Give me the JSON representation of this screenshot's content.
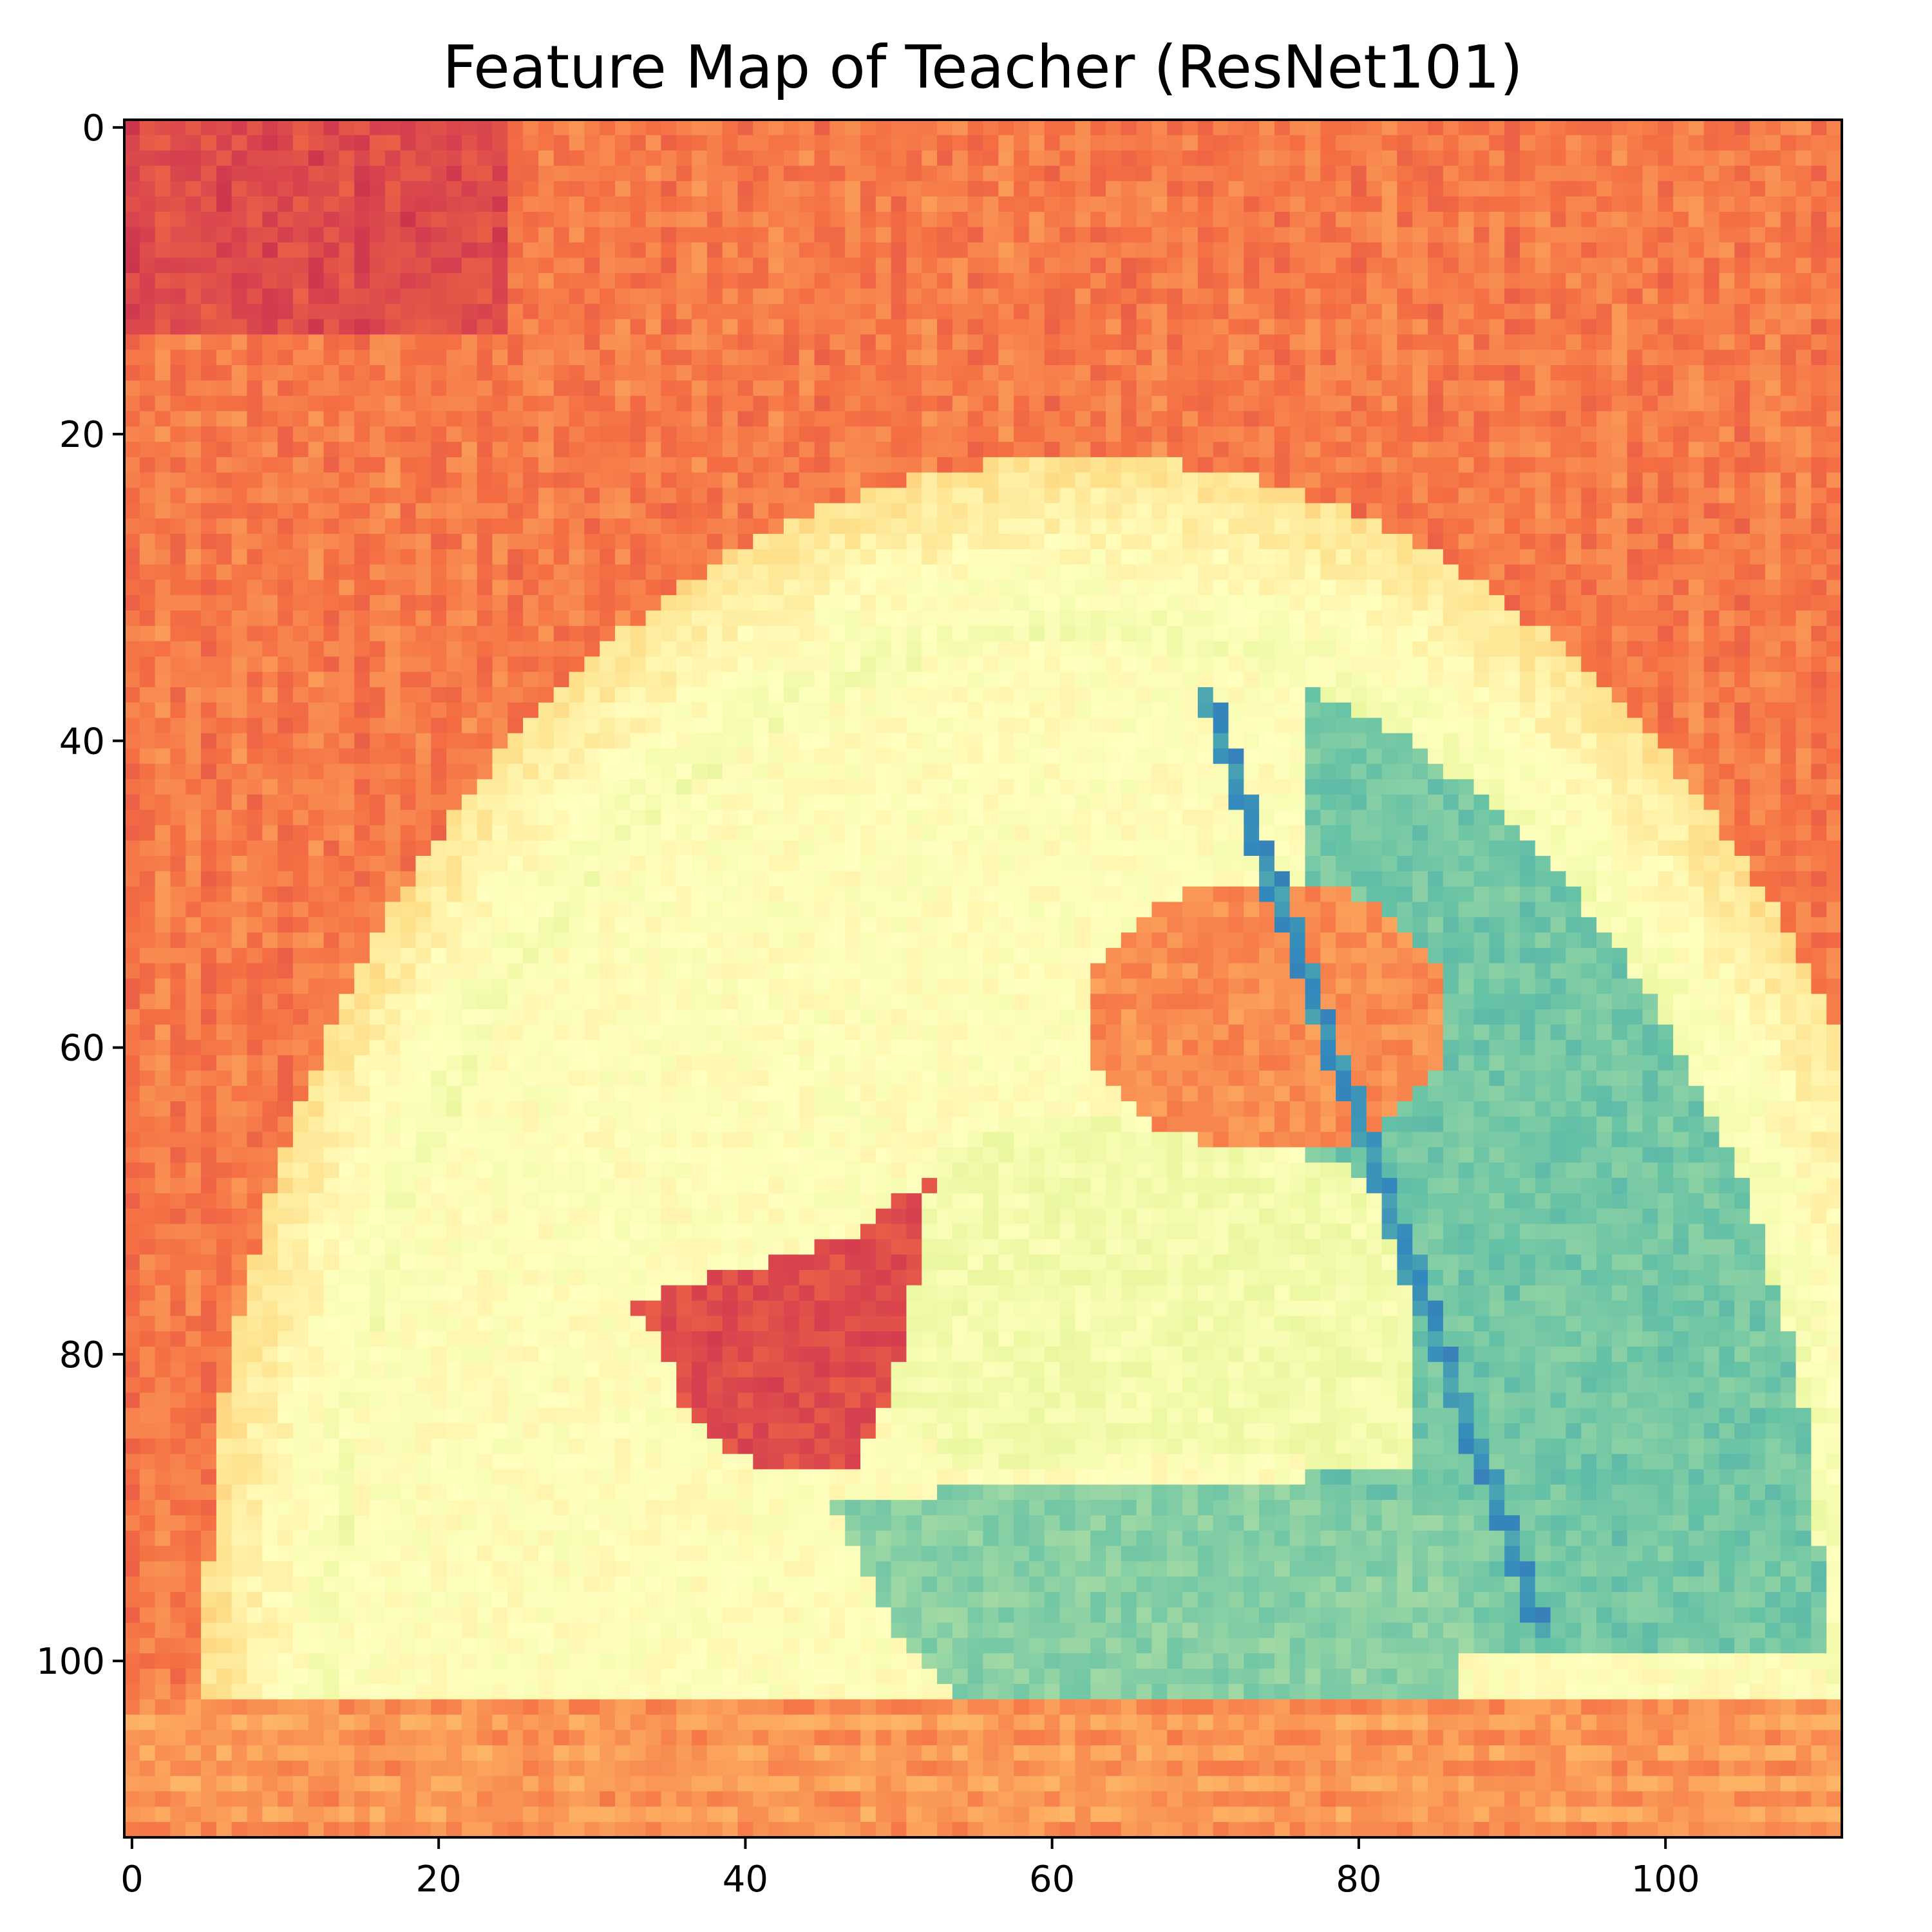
{
  "chart_data": {
    "type": "heatmap",
    "title": "Feature Map of Teacher (ResNet101)",
    "xlabel": "",
    "ylabel": "",
    "grid": false,
    "legend": "none",
    "colormap": "Spectral",
    "colormap_stops": [
      "#9e0142",
      "#d53e4f",
      "#f46d43",
      "#fdae61",
      "#fee08b",
      "#ffffbf",
      "#e6f598",
      "#abdda4",
      "#66c2a5",
      "#3288bd",
      "#5e4fa2"
    ],
    "value_range": [
      0,
      1
    ],
    "grid_size": [
      112,
      112
    ],
    "x_range": [
      -0.5,
      111.5
    ],
    "y_range": [
      111.5,
      -0.5
    ],
    "y_inverted": true,
    "x_ticks": [
      0,
      20,
      40,
      60,
      80,
      100
    ],
    "x_tick_labels": [
      "0",
      "20",
      "40",
      "60",
      "80",
      "100"
    ],
    "y_ticks": [
      0,
      20,
      40,
      60,
      80,
      100
    ],
    "y_tick_labels": [
      "0",
      "20",
      "40",
      "60",
      "80",
      "100"
    ],
    "regions": [
      {
        "label": "background",
        "value": 0.22
      },
      {
        "label": "top-left dark block",
        "value": 0.12,
        "cols": [
          0,
          24
        ],
        "rows": [
          0,
          13
        ]
      },
      {
        "label": "outer arch band",
        "value": 0.55
      },
      {
        "label": "inner arch cream",
        "value": 0.5
      },
      {
        "label": "right arch teal",
        "value": 0.78
      },
      {
        "label": "dog head",
        "value": 0.25
      },
      {
        "label": "dog body dark patch",
        "value": 0.13
      },
      {
        "label": "dog torso",
        "value": 0.55
      },
      {
        "label": "floor teal area",
        "value": 0.75
      },
      {
        "label": "blue curve",
        "value": 0.88
      },
      {
        "label": "bottom orange strip",
        "value": 0.28,
        "rows": [
          103,
          111
        ]
      }
    ]
  },
  "colors": {
    "axis": "#000000",
    "background": "#ffffff"
  }
}
